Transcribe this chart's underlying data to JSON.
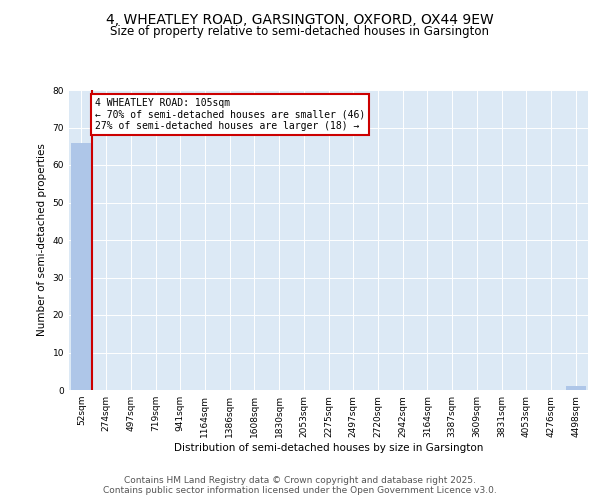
{
  "title": "4, WHEATLEY ROAD, GARSINGTON, OXFORD, OX44 9EW",
  "subtitle": "Size of property relative to semi-detached houses in Garsington",
  "xlabel": "Distribution of semi-detached houses by size in Garsington",
  "ylabel": "Number of semi-detached properties",
  "categories": [
    "52sqm",
    "274sqm",
    "497sqm",
    "719sqm",
    "941sqm",
    "1164sqm",
    "1386sqm",
    "1608sqm",
    "1830sqm",
    "2053sqm",
    "2275sqm",
    "2497sqm",
    "2720sqm",
    "2942sqm",
    "3164sqm",
    "3387sqm",
    "3609sqm",
    "3831sqm",
    "4053sqm",
    "4276sqm",
    "4498sqm"
  ],
  "values": [
    66,
    0,
    0,
    0,
    0,
    0,
    0,
    0,
    0,
    0,
    0,
    0,
    0,
    0,
    0,
    0,
    0,
    0,
    0,
    0,
    1
  ],
  "bar_color": "#aec6e8",
  "vline_color": "#cc0000",
  "annotation_title": "4 WHEATLEY ROAD: 105sqm",
  "annotation_line1": "← 70% of semi-detached houses are smaller (46)",
  "annotation_line2": "27% of semi-detached houses are larger (18) →",
  "annotation_box_color": "#cc0000",
  "ylim": [
    0,
    80
  ],
  "yticks": [
    0,
    10,
    20,
    30,
    40,
    50,
    60,
    70,
    80
  ],
  "plot_bg_color": "#dce9f5",
  "grid_color": "#ffffff",
  "footer_line1": "Contains HM Land Registry data © Crown copyright and database right 2025.",
  "footer_line2": "Contains public sector information licensed under the Open Government Licence v3.0.",
  "title_fontsize": 10,
  "subtitle_fontsize": 8.5,
  "tick_fontsize": 6.5,
  "label_fontsize": 7.5,
  "annotation_fontsize": 7,
  "footer_fontsize": 6.5
}
